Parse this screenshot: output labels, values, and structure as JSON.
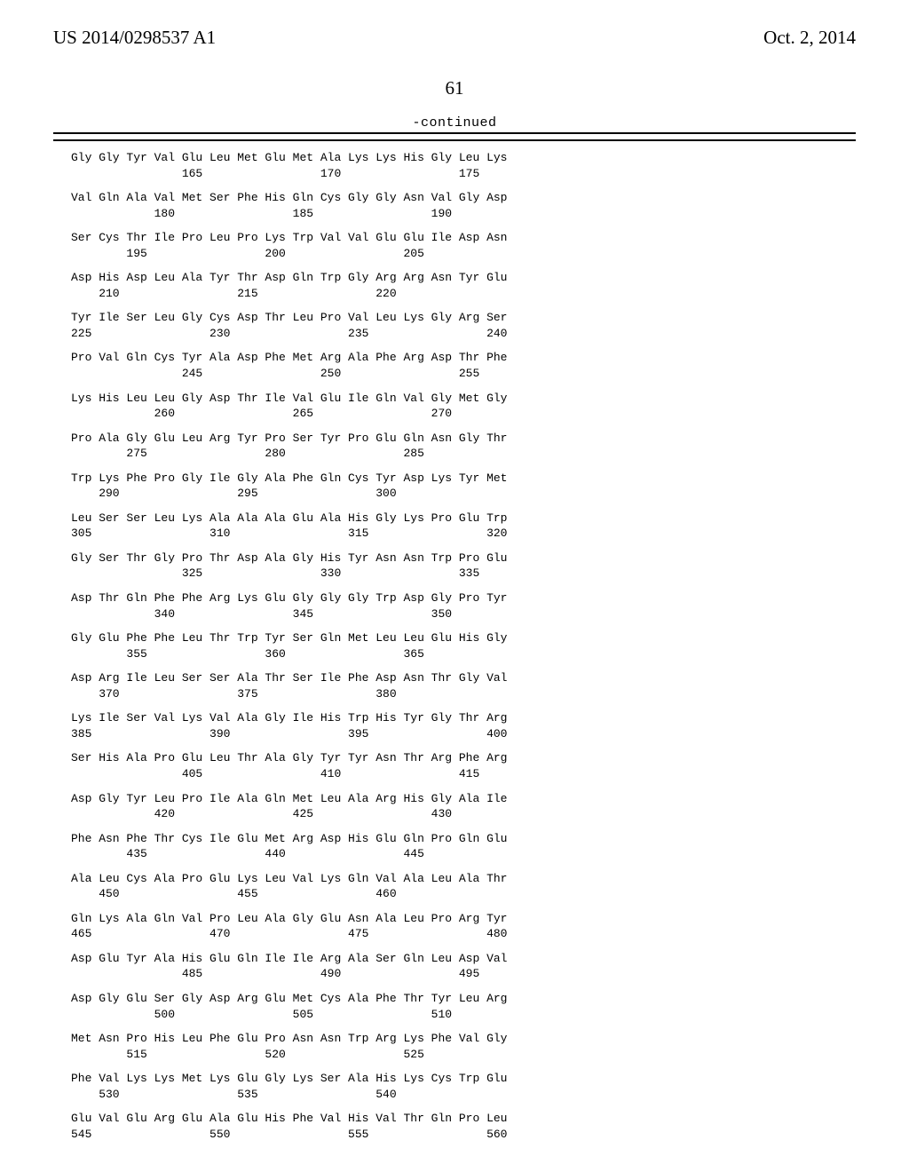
{
  "header": {
    "pub_number": "US 2014/0298537 A1",
    "pub_date": "Oct. 2, 2014"
  },
  "page_number": "61",
  "continued_label": "-continued",
  "sequence": [
    {
      "aa": "Gly Gly Tyr Val Glu Leu Met Glu Met Ala Lys Lys His Gly Leu Lys",
      "nums": "                165                 170                 175"
    },
    {
      "aa": "Val Gln Ala Val Met Ser Phe His Gln Cys Gly Gly Asn Val Gly Asp",
      "nums": "            180                 185                 190"
    },
    {
      "aa": "Ser Cys Thr Ile Pro Leu Pro Lys Trp Val Val Glu Glu Ile Asp Asn",
      "nums": "        195                 200                 205"
    },
    {
      "aa": "Asp His Asp Leu Ala Tyr Thr Asp Gln Trp Gly Arg Arg Asn Tyr Glu",
      "nums": "    210                 215                 220"
    },
    {
      "aa": "Tyr Ile Ser Leu Gly Cys Asp Thr Leu Pro Val Leu Lys Gly Arg Ser",
      "nums": "225                 230                 235                 240"
    },
    {
      "aa": "Pro Val Gln Cys Tyr Ala Asp Phe Met Arg Ala Phe Arg Asp Thr Phe",
      "nums": "                245                 250                 255"
    },
    {
      "aa": "Lys His Leu Leu Gly Asp Thr Ile Val Glu Ile Gln Val Gly Met Gly",
      "nums": "            260                 265                 270"
    },
    {
      "aa": "Pro Ala Gly Glu Leu Arg Tyr Pro Ser Tyr Pro Glu Gln Asn Gly Thr",
      "nums": "        275                 280                 285"
    },
    {
      "aa": "Trp Lys Phe Pro Gly Ile Gly Ala Phe Gln Cys Tyr Asp Lys Tyr Met",
      "nums": "    290                 295                 300"
    },
    {
      "aa": "Leu Ser Ser Leu Lys Ala Ala Ala Glu Ala His Gly Lys Pro Glu Trp",
      "nums": "305                 310                 315                 320"
    },
    {
      "aa": "Gly Ser Thr Gly Pro Thr Asp Ala Gly His Tyr Asn Asn Trp Pro Glu",
      "nums": "                325                 330                 335"
    },
    {
      "aa": "Asp Thr Gln Phe Phe Arg Lys Glu Gly Gly Gly Trp Asp Gly Pro Tyr",
      "nums": "            340                 345                 350"
    },
    {
      "aa": "Gly Glu Phe Phe Leu Thr Trp Tyr Ser Gln Met Leu Leu Glu His Gly",
      "nums": "        355                 360                 365"
    },
    {
      "aa": "Asp Arg Ile Leu Ser Ser Ala Thr Ser Ile Phe Asp Asn Thr Gly Val",
      "nums": "    370                 375                 380"
    },
    {
      "aa": "Lys Ile Ser Val Lys Val Ala Gly Ile His Trp His Tyr Gly Thr Arg",
      "nums": "385                 390                 395                 400"
    },
    {
      "aa": "Ser His Ala Pro Glu Leu Thr Ala Gly Tyr Tyr Asn Thr Arg Phe Arg",
      "nums": "                405                 410                 415"
    },
    {
      "aa": "Asp Gly Tyr Leu Pro Ile Ala Gln Met Leu Ala Arg His Gly Ala Ile",
      "nums": "            420                 425                 430"
    },
    {
      "aa": "Phe Asn Phe Thr Cys Ile Glu Met Arg Asp His Glu Gln Pro Gln Glu",
      "nums": "        435                 440                 445"
    },
    {
      "aa": "Ala Leu Cys Ala Pro Glu Lys Leu Val Lys Gln Val Ala Leu Ala Thr",
      "nums": "    450                 455                 460"
    },
    {
      "aa": "Gln Lys Ala Gln Val Pro Leu Ala Gly Glu Asn Ala Leu Pro Arg Tyr",
      "nums": "465                 470                 475                 480"
    },
    {
      "aa": "Asp Glu Tyr Ala His Glu Gln Ile Ile Arg Ala Ser Gln Leu Asp Val",
      "nums": "                485                 490                 495"
    },
    {
      "aa": "Asp Gly Glu Ser Gly Asp Arg Glu Met Cys Ala Phe Thr Tyr Leu Arg",
      "nums": "            500                 505                 510"
    },
    {
      "aa": "Met Asn Pro His Leu Phe Glu Pro Asn Asn Trp Arg Lys Phe Val Gly",
      "nums": "        515                 520                 525"
    },
    {
      "aa": "Phe Val Lys Lys Met Lys Glu Gly Lys Ser Ala His Lys Cys Trp Glu",
      "nums": "    530                 535                 540"
    },
    {
      "aa": "Glu Val Glu Arg Glu Ala Glu His Phe Val His Val Thr Gln Pro Leu",
      "nums": "545                 550                 555                 560"
    }
  ]
}
